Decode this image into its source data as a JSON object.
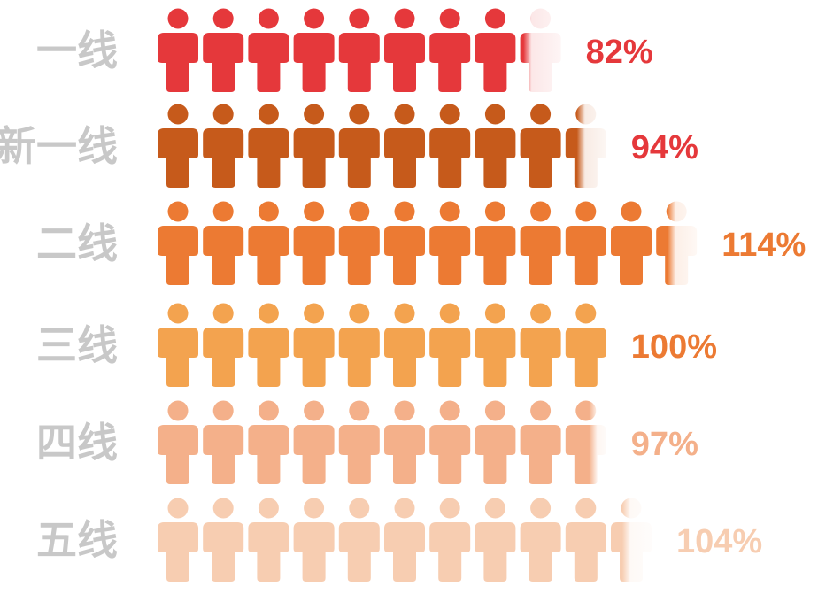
{
  "chart_data": {
    "type": "pictograph",
    "unit_percent": 10,
    "categories": [
      "一线",
      "新一线",
      "二线",
      "三线",
      "四线",
      "五线"
    ],
    "values": [
      82,
      94,
      114,
      100,
      97,
      104
    ],
    "value_labels": [
      "82%",
      "94%",
      "114%",
      "100%",
      "97%",
      "104%"
    ],
    "icon": "person-icon",
    "icon_colors": [
      "#e5383b",
      "#c65a1b",
      "#ec7a33",
      "#f3a34f",
      "#f4b08a",
      "#f7cdb1"
    ],
    "label_colors": [
      "#e5383b",
      "#e5383b",
      "#ec7a33",
      "#ec7a33",
      "#f4b08a",
      "#f7cdb1"
    ],
    "category_label_color": "#c8c8c8",
    "grid": false,
    "legend": "none"
  }
}
